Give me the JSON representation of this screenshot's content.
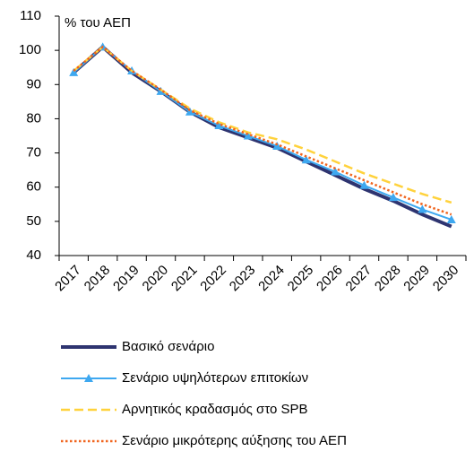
{
  "chart_data": {
    "type": "line",
    "y_label": "% του ΑΕΠ",
    "categories": [
      "2017",
      "2018",
      "2019",
      "2020",
      "2021",
      "2022",
      "2023",
      "2024",
      "2025",
      "2026",
      "2027",
      "2028",
      "2029",
      "2030"
    ],
    "series": [
      {
        "name": "Βασικό σενάριο",
        "color": "#2e3470",
        "style": "solid",
        "width": 4,
        "marker": null,
        "values": [
          93.5,
          101,
          93.5,
          88,
          82,
          77.5,
          74.5,
          71.5,
          67.5,
          63.5,
          59.5,
          56,
          52,
          48.5
        ]
      },
      {
        "name": "Σενάριο υψηλότερων επιτοκίων",
        "color": "#3ea8f0",
        "style": "solid",
        "width": 2,
        "marker": "triangle",
        "values": [
          93.5,
          101,
          94,
          88,
          82,
          78,
          75,
          72,
          68,
          64.5,
          60.5,
          57,
          53.5,
          50.5
        ]
      },
      {
        "name": "Αρνητικός κραδασμός στο SPB",
        "color": "#ffd23c",
        "style": "dashed",
        "width": 2.5,
        "marker": null,
        "values": [
          94,
          101,
          94,
          88.5,
          83,
          79,
          76,
          74,
          71,
          67.5,
          64,
          61,
          58,
          55.5
        ]
      },
      {
        "name": "Σενάριο μικρότερης αύξησης του ΑΕΠ",
        "color": "#f0641e",
        "style": "dotted",
        "width": 2.5,
        "marker": null,
        "values": [
          94,
          101,
          94,
          88.5,
          82.5,
          78.5,
          75.5,
          72.5,
          69,
          65.5,
          62,
          58.5,
          55,
          52
        ]
      }
    ],
    "ylim": [
      40,
      110
    ],
    "yticks": [
      40,
      50,
      60,
      70,
      80,
      90,
      100,
      110
    ],
    "grid": false,
    "legend": "bottom"
  }
}
